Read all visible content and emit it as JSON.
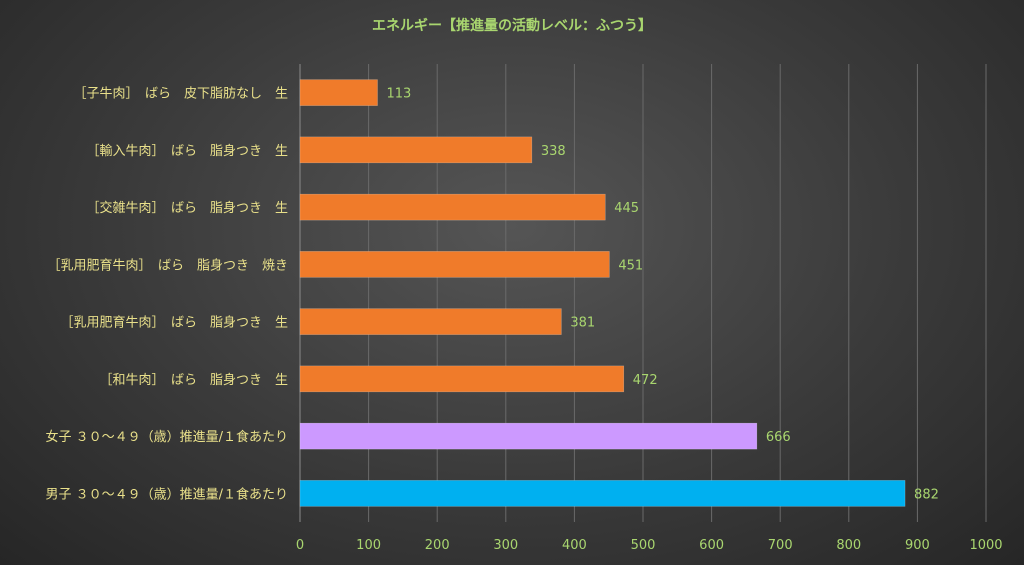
{
  "chart_data": {
    "type": "bar",
    "orientation": "horizontal",
    "title": "エネルギー【推進量の活動レベル：ふつう】",
    "categories": [
      "［子牛肉］　ばら　皮下脂肪なし　生",
      "［輸入牛肉］　ばら　脂身つき　生",
      "［交雑牛肉］　ばら　脂身つき　生",
      "［乳用肥育牛肉］　ばら　脂身つき　焼き",
      "［乳用肥育牛肉］　ばら　脂身つき　生",
      "［和牛肉］　ばら　脂身つき　生",
      "女子 ３０～４９（歳）推進量/１食あたり",
      "男子 ３０～４９（歳）推進量/１食あたり"
    ],
    "values": [
      113,
      338,
      445,
      451,
      381,
      472,
      666,
      882
    ],
    "value_labels": [
      "113",
      "338",
      "445",
      "451",
      "381",
      "472",
      "666",
      "882"
    ],
    "bar_colors": [
      "#f07b2a",
      "#f07b2a",
      "#f07b2a",
      "#f07b2a",
      "#f07b2a",
      "#f07b2a",
      "#cc99ff",
      "#00b0f0"
    ],
    "xlim": [
      0,
      1000
    ],
    "xticks": [
      0,
      100,
      200,
      300,
      400,
      500,
      600,
      700,
      800,
      900,
      1000
    ],
    "xtick_labels": [
      "0",
      "100",
      "200",
      "300",
      "400",
      "500",
      "600",
      "700",
      "800",
      "900",
      "1000"
    ],
    "grid": true,
    "legend": "none",
    "xlabel": "",
    "ylabel": ""
  }
}
